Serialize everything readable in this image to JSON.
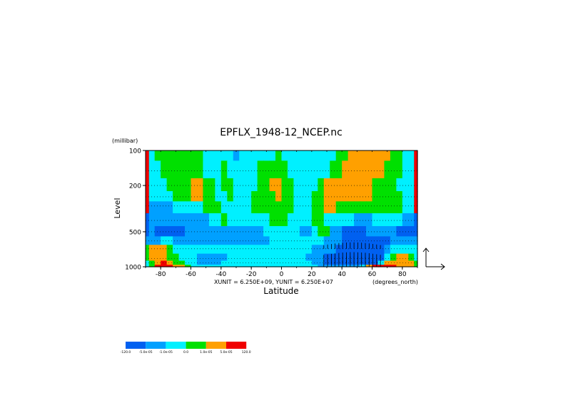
{
  "chart_data": {
    "type": "heatmap",
    "title": "EPFLX_1948-12_NCEP.nc",
    "xlabel": "Latitude",
    "ylabel": "Level",
    "y_unit": "(millibar)",
    "x_unit": "(degrees_north)",
    "vector_scale": "XUNIT = 6.250E+09, YUNIT = 6.250E+07",
    "xlim": [
      -90,
      90
    ],
    "ylim": [
      1000,
      100
    ],
    "y_scale": "log",
    "x_ticks": [
      -80,
      -60,
      -40,
      -20,
      0,
      20,
      40,
      60,
      80
    ],
    "x_tick_labels": [
      "-80",
      "-60",
      "-40",
      "-20",
      "0",
      "20",
      "40",
      "60",
      "80"
    ],
    "y_ticks": [
      100,
      200,
      500,
      1000
    ],
    "y_tick_labels": [
      "100",
      "200",
      "500",
      "1000"
    ],
    "pressure_levels": [
      100,
      150,
      200,
      250,
      300,
      400,
      500,
      600,
      700,
      850,
      925,
      1000
    ],
    "legend": {
      "placement": "bottom-left",
      "colors": [
        "#0060f0",
        "#00a0ff",
        "#00f0ff",
        "#00e000",
        "#ffa000",
        "#f00000"
      ],
      "labels": [
        "-120.0",
        "-5.0e-05",
        "-1.0e-05",
        "0.0",
        "1.0e-05",
        "5.0e-05",
        "120.0"
      ]
    },
    "class_colors": [
      "#0060f0",
      "#00a0ff",
      "#00f0ff",
      "#00e000",
      "#ffa000",
      "#f00000"
    ],
    "class_grid_note": "",
    "lat_cols": [
      -89.5,
      -86,
      -82,
      -78,
      -74,
      -70,
      -66,
      -62,
      -58,
      -54,
      -50,
      -46,
      -42,
      -38,
      -34,
      -30,
      -26,
      -22,
      -18,
      -14,
      -10,
      -6,
      -2,
      2,
      6,
      10,
      14,
      18,
      22,
      26,
      30,
      34,
      38,
      42,
      46,
      50,
      54,
      58,
      62,
      66,
      70,
      74,
      78,
      82,
      86,
      89.5
    ],
    "lev_rows": [
      100,
      150,
      200,
      250,
      300,
      400,
      500,
      600,
      700,
      850,
      925,
      1000
    ],
    "classes": [
      [
        5,
        2,
        3,
        3,
        3,
        3,
        3,
        3,
        3,
        3,
        2,
        2,
        2,
        2,
        2,
        1,
        2,
        2,
        2,
        2,
        2,
        2,
        3,
        2,
        2,
        2,
        2,
        2,
        2,
        2,
        2,
        2,
        3,
        3,
        4,
        4,
        4,
        4,
        4,
        4,
        4,
        3,
        3,
        2,
        2,
        5
      ],
      [
        5,
        2,
        2,
        3,
        3,
        3,
        3,
        3,
        3,
        3,
        2,
        2,
        2,
        3,
        2,
        2,
        2,
        2,
        2,
        3,
        3,
        3,
        3,
        3,
        2,
        2,
        2,
        2,
        2,
        2,
        2,
        3,
        3,
        4,
        4,
        4,
        4,
        4,
        4,
        4,
        3,
        3,
        3,
        2,
        2,
        5
      ],
      [
        5,
        2,
        2,
        2,
        3,
        3,
        3,
        3,
        4,
        4,
        3,
        3,
        2,
        3,
        3,
        2,
        2,
        2,
        2,
        3,
        3,
        4,
        4,
        3,
        3,
        2,
        2,
        2,
        2,
        3,
        4,
        4,
        4,
        4,
        4,
        4,
        4,
        4,
        3,
        3,
        3,
        3,
        2,
        2,
        2,
        5
      ],
      [
        5,
        2,
        2,
        2,
        2,
        3,
        3,
        3,
        4,
        4,
        3,
        3,
        2,
        2,
        3,
        2,
        2,
        2,
        3,
        3,
        3,
        3,
        4,
        3,
        3,
        2,
        2,
        2,
        3,
        3,
        4,
        4,
        4,
        4,
        4,
        4,
        4,
        4,
        3,
        3,
        3,
        3,
        3,
        2,
        2,
        5
      ],
      [
        5,
        1,
        1,
        1,
        1,
        2,
        2,
        2,
        2,
        2,
        3,
        3,
        3,
        2,
        2,
        2,
        2,
        2,
        3,
        3,
        3,
        3,
        3,
        3,
        3,
        2,
        2,
        2,
        3,
        3,
        4,
        4,
        3,
        3,
        3,
        3,
        3,
        3,
        3,
        3,
        3,
        3,
        3,
        2,
        2,
        5
      ],
      [
        0,
        1,
        1,
        1,
        1,
        1,
        1,
        1,
        1,
        1,
        1,
        2,
        2,
        3,
        2,
        2,
        2,
        2,
        2,
        2,
        2,
        3,
        3,
        3,
        2,
        2,
        2,
        2,
        3,
        3,
        2,
        2,
        2,
        2,
        2,
        1,
        1,
        1,
        2,
        2,
        2,
        2,
        2,
        1,
        1,
        0
      ],
      [
        0,
        1,
        0,
        0,
        0,
        0,
        0,
        1,
        1,
        1,
        1,
        1,
        1,
        1,
        1,
        1,
        1,
        1,
        1,
        1,
        2,
        2,
        2,
        2,
        2,
        2,
        1,
        1,
        2,
        3,
        3,
        1,
        1,
        0,
        0,
        0,
        0,
        1,
        1,
        1,
        1,
        1,
        0,
        0,
        0,
        0
      ],
      [
        1,
        1,
        1,
        2,
        2,
        1,
        1,
        1,
        1,
        1,
        1,
        1,
        1,
        1,
        1,
        1,
        1,
        1,
        1,
        1,
        1,
        2,
        2,
        2,
        2,
        2,
        2,
        2,
        2,
        2,
        1,
        1,
        1,
        0,
        0,
        0,
        0,
        0,
        0,
        0,
        0,
        1,
        1,
        1,
        1,
        1
      ],
      [
        3,
        4,
        4,
        4,
        3,
        2,
        2,
        2,
        2,
        2,
        2,
        2,
        2,
        2,
        2,
        2,
        2,
        2,
        2,
        2,
        2,
        2,
        2,
        2,
        2,
        2,
        2,
        2,
        1,
        1,
        1,
        1,
        0,
        0,
        0,
        0,
        0,
        0,
        0,
        0,
        1,
        2,
        2,
        2,
        2,
        2
      ],
      [
        3,
        4,
        4,
        4,
        3,
        3,
        2,
        2,
        2,
        1,
        1,
        1,
        1,
        1,
        2,
        2,
        2,
        2,
        2,
        2,
        2,
        2,
        2,
        2,
        2,
        2,
        2,
        1,
        1,
        1,
        0,
        0,
        0,
        0,
        0,
        0,
        0,
        0,
        0,
        0,
        2,
        3,
        4,
        4,
        3,
        2
      ],
      [
        2,
        3,
        4,
        5,
        4,
        3,
        3,
        2,
        2,
        1,
        1,
        1,
        1,
        2,
        2,
        2,
        2,
        2,
        2,
        2,
        2,
        2,
        2,
        2,
        2,
        2,
        2,
        2,
        1,
        1,
        0,
        0,
        0,
        0,
        0,
        0,
        0,
        0,
        0,
        2,
        4,
        4,
        4,
        4,
        4,
        3
      ],
      [
        2,
        3,
        5,
        5,
        5,
        4,
        4,
        3,
        2,
        2,
        2,
        2,
        2,
        2,
        2,
        2,
        2,
        2,
        2,
        2,
        2,
        2,
        2,
        2,
        2,
        2,
        2,
        2,
        2,
        1,
        1,
        1,
        1,
        1,
        1,
        1,
        2,
        4,
        5,
        5,
        5,
        5,
        4,
        4,
        4,
        3
      ]
    ],
    "arrow_lat_range": [
      28,
      66
    ],
    "arrow_levels": [
      700,
      850,
      925,
      1000
    ],
    "grid_rows": "dotted lines at each pressure level"
  }
}
